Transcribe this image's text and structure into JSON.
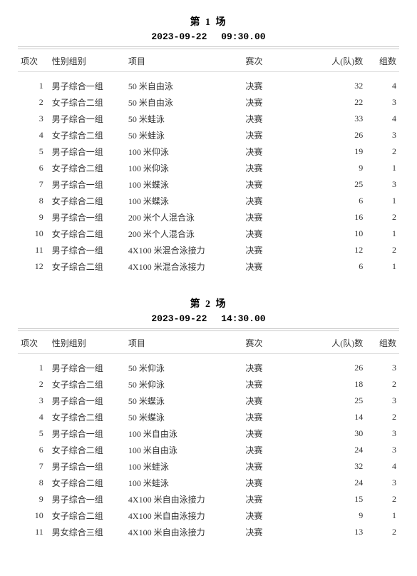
{
  "headers": {
    "idx": "项次",
    "group": "性别组别",
    "event": "项目",
    "round": "赛次",
    "count": "人(队)数",
    "heats": "组数"
  },
  "sessions": [
    {
      "title": "第 1 场",
      "date": "2023-09-22",
      "time": "09:30.00",
      "rows": [
        {
          "idx": 1,
          "group": "男子综合一组",
          "event": "50 米自由泳",
          "round": "决赛",
          "count": 32,
          "heats": 4
        },
        {
          "idx": 2,
          "group": "女子综合二组",
          "event": "50 米自由泳",
          "round": "决赛",
          "count": 22,
          "heats": 3
        },
        {
          "idx": 3,
          "group": "男子综合一组",
          "event": "50 米蛙泳",
          "round": "决赛",
          "count": 33,
          "heats": 4
        },
        {
          "idx": 4,
          "group": "女子综合二组",
          "event": "50 米蛙泳",
          "round": "决赛",
          "count": 26,
          "heats": 3
        },
        {
          "idx": 5,
          "group": "男子综合一组",
          "event": "100 米仰泳",
          "round": "决赛",
          "count": 19,
          "heats": 2
        },
        {
          "idx": 6,
          "group": "女子综合二组",
          "event": "100 米仰泳",
          "round": "决赛",
          "count": 9,
          "heats": 1
        },
        {
          "idx": 7,
          "group": "男子综合一组",
          "event": "100 米蝶泳",
          "round": "决赛",
          "count": 25,
          "heats": 3
        },
        {
          "idx": 8,
          "group": "女子综合二组",
          "event": "100 米蝶泳",
          "round": "决赛",
          "count": 6,
          "heats": 1
        },
        {
          "idx": 9,
          "group": "男子综合一组",
          "event": "200 米个人混合泳",
          "round": "决赛",
          "count": 16,
          "heats": 2
        },
        {
          "idx": 10,
          "group": "女子综合二组",
          "event": "200 米个人混合泳",
          "round": "决赛",
          "count": 10,
          "heats": 1
        },
        {
          "idx": 11,
          "group": "男子综合一组",
          "event": "4X100 米混合泳接力",
          "round": "决赛",
          "count": 12,
          "heats": 2
        },
        {
          "idx": 12,
          "group": "女子综合二组",
          "event": "4X100 米混合泳接力",
          "round": "决赛",
          "count": 6,
          "heats": 1
        }
      ]
    },
    {
      "title": "第 2 场",
      "date": "2023-09-22",
      "time": "14:30.00",
      "rows": [
        {
          "idx": 1,
          "group": "男子综合一组",
          "event": "50 米仰泳",
          "round": "决赛",
          "count": 26,
          "heats": 3
        },
        {
          "idx": 2,
          "group": "女子综合二组",
          "event": "50 米仰泳",
          "round": "决赛",
          "count": 18,
          "heats": 2
        },
        {
          "idx": 3,
          "group": "男子综合一组",
          "event": "50 米蝶泳",
          "round": "决赛",
          "count": 25,
          "heats": 3
        },
        {
          "idx": 4,
          "group": "女子综合二组",
          "event": "50 米蝶泳",
          "round": "决赛",
          "count": 14,
          "heats": 2
        },
        {
          "idx": 5,
          "group": "男子综合一组",
          "event": "100 米自由泳",
          "round": "决赛",
          "count": 30,
          "heats": 3
        },
        {
          "idx": 6,
          "group": "女子综合二组",
          "event": "100 米自由泳",
          "round": "决赛",
          "count": 24,
          "heats": 3
        },
        {
          "idx": 7,
          "group": "男子综合一组",
          "event": "100 米蛙泳",
          "round": "决赛",
          "count": 32,
          "heats": 4
        },
        {
          "idx": 8,
          "group": "女子综合二组",
          "event": "100 米蛙泳",
          "round": "决赛",
          "count": 24,
          "heats": 3
        },
        {
          "idx": 9,
          "group": "男子综合一组",
          "event": "4X100 米自由泳接力",
          "round": "决赛",
          "count": 15,
          "heats": 2
        },
        {
          "idx": 10,
          "group": "女子综合二组",
          "event": "4X100 米自由泳接力",
          "round": "决赛",
          "count": 9,
          "heats": 1
        },
        {
          "idx": 11,
          "group": "男女综合三组",
          "event": "4X100 米自由泳接力",
          "round": "决赛",
          "count": 13,
          "heats": 2
        }
      ]
    }
  ]
}
